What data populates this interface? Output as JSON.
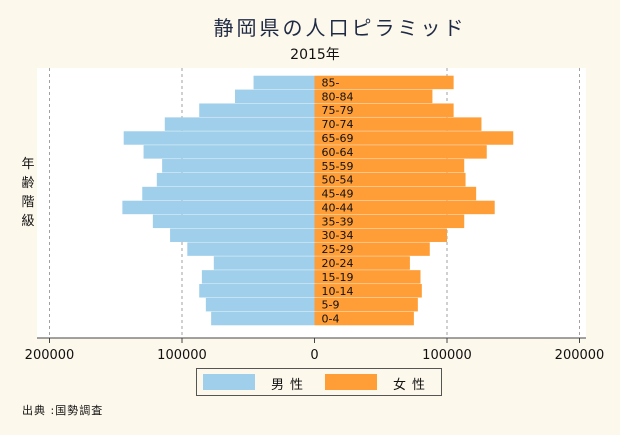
{
  "chart_data": {
    "type": "bar",
    "orientation": "horizontal-population-pyramid",
    "title": "静岡県の人口ピラミッド",
    "subtitle": "2015年",
    "ylabel": "年齢階級",
    "categories": [
      "0-4",
      "5-9",
      "10-14",
      "15-19",
      "20-24",
      "25-29",
      "30-34",
      "35-39",
      "40-44",
      "45-49",
      "50-54",
      "55-59",
      "60-64",
      "65-69",
      "70-74",
      "75-79",
      "80-84",
      "85-"
    ],
    "series": [
      {
        "name": "男性",
        "side": "left",
        "color": "#9fcfea",
        "values": [
          78000,
          82000,
          87000,
          85000,
          76000,
          96000,
          109000,
          122000,
          145000,
          130000,
          119000,
          115000,
          129000,
          144000,
          113000,
          87000,
          60000,
          46000
        ]
      },
      {
        "name": "女性",
        "side": "right",
        "color": "#ff9d36",
        "values": [
          75000,
          78000,
          81000,
          80000,
          72000,
          87000,
          100000,
          113000,
          136000,
          122000,
          114000,
          113000,
          130000,
          150000,
          126000,
          105000,
          89000,
          105000
        ]
      }
    ],
    "xlim": [
      -200000,
      200000
    ],
    "xticks": [
      "200000",
      "100000",
      "0",
      "100000",
      "200000"
    ],
    "grid": true,
    "legend_position": "bottom"
  },
  "source": "出典 :国勢調査"
}
